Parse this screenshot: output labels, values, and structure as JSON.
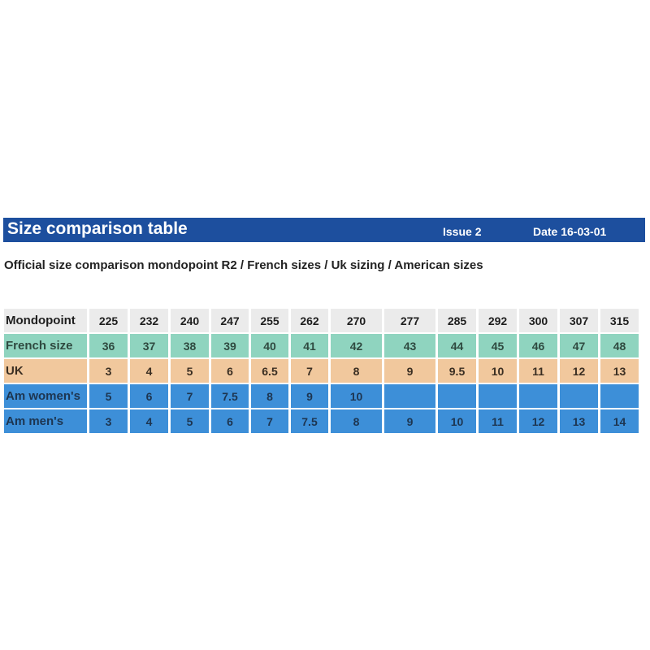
{
  "header": {
    "title": "Size comparison table",
    "issue": "Issue 2",
    "date": "Date  16-03-01",
    "color": "#1d4f9e"
  },
  "subtitle": "Official size comparison mondopoint R2 / French sizes / Uk sizing / American sizes",
  "table": {
    "rows": [
      {
        "label": "Mondopoint",
        "values": [
          "225",
          "232",
          "240",
          "247",
          "255",
          "262",
          "270",
          "277",
          "285",
          "292",
          "300",
          "307",
          "315"
        ],
        "color": "#ebebeb"
      },
      {
        "label": "French size",
        "values": [
          "36",
          "37",
          "38",
          "39",
          "40",
          "41",
          "42",
          "43",
          "44",
          "45",
          "46",
          "47",
          "48"
        ],
        "color": "#8fd4bf"
      },
      {
        "label": "UK",
        "values": [
          "3",
          "4",
          "5",
          "6",
          "6.5",
          "7",
          "8",
          "9",
          "9.5",
          "10",
          "11",
          "12",
          "13"
        ],
        "color": "#f1c89d"
      },
      {
        "label": "Am women's",
        "values": [
          "5",
          "6",
          "7",
          "7.5",
          "8",
          "9",
          "10",
          "",
          "",
          "",
          "",
          "",
          ""
        ],
        "color": "#3d8fd8"
      },
      {
        "label": "Am men's",
        "values": [
          "3",
          "4",
          "5",
          "6",
          "7",
          "7.5",
          "8",
          "9",
          "10",
          "11",
          "12",
          "13",
          "14"
        ],
        "color": "#3d8fd8"
      }
    ]
  }
}
